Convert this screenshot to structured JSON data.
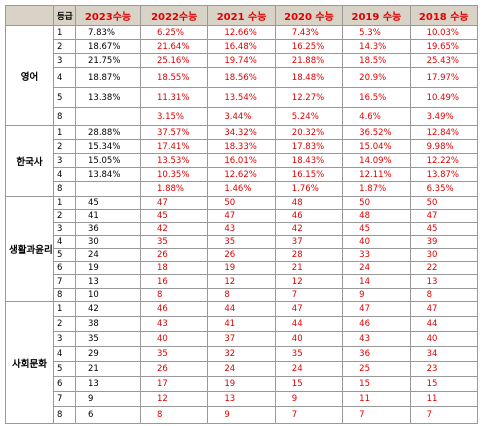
{
  "table": {
    "header": [
      "등급",
      "2023수능",
      "2022수능",
      "2021 수능",
      "2020 수능",
      "2019 수능",
      "2018 수능"
    ],
    "groups": [
      {
        "name": "영어",
        "rows": [
          [
            "1",
            "7.83%",
            "6.25%",
            "12.66%",
            "7.43%",
            "5.3%",
            "10.03%"
          ],
          [
            "2",
            "18.67%",
            "21.64%",
            "16.48%",
            "16.25%",
            "14.3%",
            "19.65%"
          ],
          [
            "3",
            "21.75%",
            "25.16%",
            "19.74%",
            "21.88%",
            "18.5%",
            "25.43%"
          ],
          [
            "4",
            "18.87%",
            "18.55%",
            "18.56%",
            "18.48%",
            "20.9%",
            "17.97%"
          ],
          [
            "5",
            "13.38%",
            "11.31%",
            "13.54%",
            "12.27%",
            "16.5%",
            "10.49%"
          ],
          [
            "8",
            null,
            "3.15%",
            "3.44%",
            "5.24%",
            "4.6%",
            "3.49%"
          ]
        ]
      },
      {
        "name": "한국사",
        "rows": [
          [
            "1",
            "28.88%",
            "37.57%",
            "34.32%",
            "20.32%",
            "36.52%",
            "12.84%"
          ],
          [
            "2",
            "15.34%",
            "17.41%",
            "18.33%",
            "17.83%",
            "15.04%",
            "9.98%"
          ],
          [
            "3",
            "15.05%",
            "13.53%",
            "16.01%",
            "18.43%",
            "14.09%",
            "12.22%"
          ],
          [
            "4",
            "13.84%",
            "10.35%",
            "12.62%",
            "16.15%",
            "12.11%",
            "13.87%"
          ],
          [
            "8",
            null,
            "1.88%",
            "1.46%",
            "1.76%",
            "1.87%",
            "6.35%"
          ]
        ]
      },
      {
        "name": "생활과윤리",
        "rows": [
          [
            "1",
            "45",
            "47",
            "50",
            "48",
            "50",
            "50"
          ],
          [
            "2",
            "41",
            "45",
            "47",
            "46",
            "48",
            "47"
          ],
          [
            "3",
            "36",
            "42",
            "43",
            "42",
            "45",
            "45"
          ],
          [
            "4",
            "30",
            "35",
            "35",
            "37",
            "40",
            "39"
          ],
          [
            "5",
            "24",
            "26",
            "26",
            "28",
            "33",
            "30"
          ],
          [
            "6",
            "19",
            "18",
            "19",
            "21",
            "24",
            "22"
          ],
          [
            "7",
            "13",
            "16",
            "12",
            "12",
            "14",
            "13"
          ],
          [
            "8",
            "10",
            "8",
            "8",
            "7",
            "9",
            "8"
          ]
        ]
      },
      {
        "name": "사회문화",
        "rows": [
          [
            "1",
            "42",
            "46",
            "44",
            "47",
            "47",
            "47"
          ],
          [
            "2",
            "38",
            "43",
            "41",
            "44",
            "46",
            "44"
          ],
          [
            "3",
            "35",
            "40",
            "37",
            "40",
            "43",
            "40"
          ],
          [
            "4",
            "29",
            "35",
            "32",
            "35",
            "36",
            "34"
          ],
          [
            "5",
            "21",
            "26",
            "24",
            "24",
            "25",
            "23"
          ],
          [
            "6",
            "13",
            "17",
            "19",
            "15",
            "15",
            "15"
          ],
          [
            "7",
            "9",
            "12",
            "13",
            "9",
            "11",
            "11"
          ],
          [
            "8",
            "6",
            "8",
            "9",
            "7",
            "7",
            "7"
          ]
        ]
      }
    ]
  }
}
